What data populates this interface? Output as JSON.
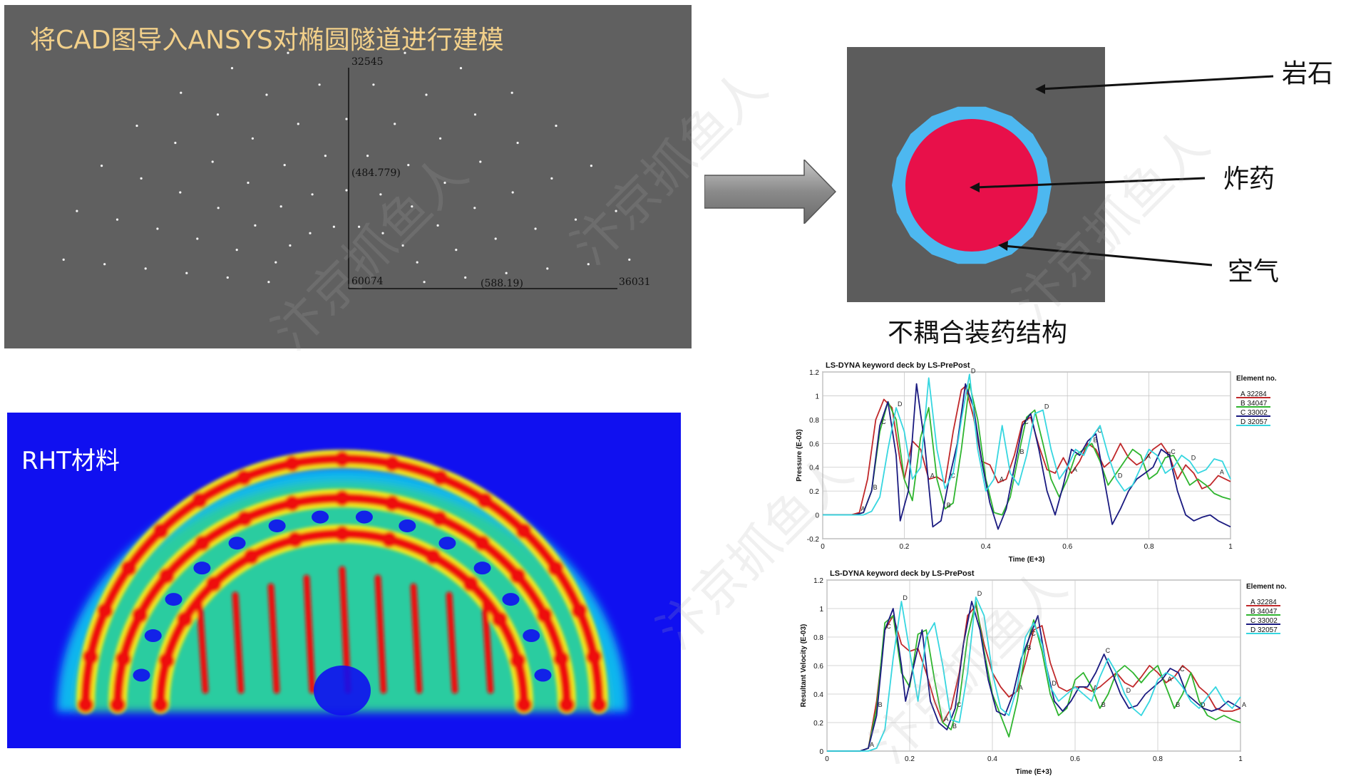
{
  "cad": {
    "title": "将CAD图导入ANSYS对椭圆隧道进行建模",
    "node_top": "32545",
    "node_origin": "60074",
    "node_right": "36031",
    "coord_vertical": "(484.779)",
    "coord_horizontal": "(588.19)"
  },
  "charge": {
    "label_rock": "岩石",
    "label_explosive": "炸药",
    "label_air": "空气",
    "caption": "不耦合装药结构",
    "colors": {
      "rock": "#5c5c5c",
      "air": "#4db8f0",
      "explosive": "#e8104a"
    }
  },
  "rht": {
    "label": "RHT材料"
  },
  "watermark": "汴京抓鱼人",
  "chart_data": [
    {
      "type": "line",
      "title": "LS-DYNA keyword deck by LS-PrePost",
      "xlabel": "Time (E+3)",
      "ylabel": "Pressure (E-03)",
      "xlim": [
        0,
        1
      ],
      "ylim": [
        -0.2,
        1.2
      ],
      "xticks": [
        0,
        0.2,
        0.4,
        0.6,
        0.8,
        1
      ],
      "yticks": [
        -0.2,
        0,
        0.2,
        0.4,
        0.6,
        0.8,
        1,
        1.2
      ],
      "legend_title": "Element no.",
      "legend_position": "right",
      "series": [
        {
          "name": "A 32284",
          "marker": "A",
          "color": "#c0282a",
          "x": [
            0,
            0.07,
            0.09,
            0.11,
            0.13,
            0.15,
            0.17,
            0.19,
            0.2,
            0.22,
            0.24,
            0.26,
            0.28,
            0.3,
            0.32,
            0.34,
            0.35,
            0.37,
            0.39,
            0.41,
            0.43,
            0.45,
            0.47,
            0.49,
            0.51,
            0.53,
            0.55,
            0.57,
            0.59,
            0.61,
            0.63,
            0.65,
            0.67,
            0.69,
            0.71,
            0.73,
            0.75,
            0.77,
            0.79,
            0.81,
            0.83,
            0.85,
            0.87,
            0.89,
            0.91,
            0.93,
            0.95,
            0.97,
            1
          ],
          "y": [
            0,
            0,
            0.02,
            0.3,
            0.8,
            0.97,
            0.9,
            0.45,
            0.3,
            0.62,
            0.55,
            0.3,
            0.32,
            0.27,
            0.7,
            1.05,
            1.08,
            0.82,
            0.45,
            0.42,
            0.27,
            0.3,
            0.5,
            0.78,
            0.82,
            0.58,
            0.38,
            0.35,
            0.48,
            0.35,
            0.45,
            0.6,
            0.55,
            0.4,
            0.46,
            0.6,
            0.48,
            0.42,
            0.46,
            0.55,
            0.6,
            0.5,
            0.3,
            0.42,
            0.35,
            0.22,
            0.25,
            0.33,
            0.28
          ]
        },
        {
          "name": "B 34047",
          "marker": "B",
          "color": "#2fb52f",
          "x": [
            0,
            0.08,
            0.1,
            0.12,
            0.14,
            0.16,
            0.18,
            0.2,
            0.22,
            0.24,
            0.26,
            0.28,
            0.3,
            0.32,
            0.34,
            0.36,
            0.38,
            0.4,
            0.42,
            0.44,
            0.46,
            0.48,
            0.5,
            0.52,
            0.54,
            0.56,
            0.58,
            0.6,
            0.62,
            0.64,
            0.66,
            0.68,
            0.7,
            0.72,
            0.74,
            0.76,
            0.78,
            0.8,
            0.82,
            0.84,
            0.86,
            0.88,
            0.9,
            0.92,
            0.94,
            0.96,
            0.98,
            1
          ],
          "y": [
            0,
            0,
            0.02,
            0.2,
            0.7,
            0.95,
            0.8,
            0.3,
            0.12,
            0.65,
            0.9,
            0.3,
            0.05,
            0.1,
            0.55,
            1.1,
            0.8,
            0.3,
            0.02,
            0.0,
            0.15,
            0.5,
            0.82,
            0.88,
            0.6,
            0.3,
            0.15,
            0.3,
            0.5,
            0.55,
            0.6,
            0.45,
            0.25,
            0.35,
            0.45,
            0.55,
            0.5,
            0.3,
            0.35,
            0.48,
            0.5,
            0.38,
            0.25,
            0.3,
            0.25,
            0.18,
            0.15,
            0.13
          ]
        },
        {
          "name": "C 33002",
          "marker": "C",
          "color": "#1a1a80",
          "x": [
            0,
            0.08,
            0.1,
            0.12,
            0.14,
            0.16,
            0.18,
            0.19,
            0.21,
            0.23,
            0.25,
            0.27,
            0.29,
            0.31,
            0.33,
            0.35,
            0.37,
            0.39,
            0.41,
            0.43,
            0.45,
            0.47,
            0.49,
            0.51,
            0.53,
            0.55,
            0.57,
            0.59,
            0.61,
            0.63,
            0.65,
            0.67,
            0.69,
            0.71,
            0.73,
            0.75,
            0.77,
            0.79,
            0.81,
            0.83,
            0.85,
            0.87,
            0.89,
            0.91,
            0.93,
            0.95,
            0.97,
            1
          ],
          "y": [
            0,
            0,
            0.02,
            0.2,
            0.75,
            0.95,
            0.5,
            -0.05,
            0.2,
            1.1,
            0.6,
            -0.1,
            -0.05,
            0.3,
            0.6,
            1.1,
            0.9,
            0.45,
            0.1,
            -0.12,
            0.05,
            0.4,
            0.75,
            0.85,
            0.55,
            0.2,
            0.0,
            0.25,
            0.55,
            0.5,
            0.62,
            0.68,
            0.3,
            -0.08,
            0.05,
            0.2,
            0.3,
            0.35,
            0.4,
            0.55,
            0.5,
            0.2,
            0.0,
            -0.05,
            -0.02,
            0.0,
            -0.05,
            -0.1
          ]
        },
        {
          "name": "D 32057",
          "marker": "D",
          "color": "#36d6e0",
          "x": [
            0,
            0.1,
            0.12,
            0.14,
            0.16,
            0.18,
            0.2,
            0.22,
            0.24,
            0.26,
            0.28,
            0.3,
            0.32,
            0.34,
            0.36,
            0.38,
            0.4,
            0.42,
            0.44,
            0.46,
            0.48,
            0.5,
            0.52,
            0.54,
            0.56,
            0.58,
            0.6,
            0.62,
            0.64,
            0.66,
            0.68,
            0.7,
            0.72,
            0.74,
            0.76,
            0.78,
            0.8,
            0.82,
            0.84,
            0.86,
            0.88,
            0.9,
            0.92,
            0.94,
            0.96,
            0.98,
            1
          ],
          "y": [
            0,
            0,
            0.03,
            0.15,
            0.55,
            0.9,
            0.7,
            0.3,
            0.4,
            1.15,
            0.55,
            0.22,
            0.35,
            0.8,
            1.18,
            0.55,
            0.2,
            0.3,
            0.75,
            0.35,
            0.25,
            0.5,
            0.85,
            0.88,
            0.55,
            0.3,
            0.4,
            0.55,
            0.5,
            0.65,
            0.75,
            0.5,
            0.3,
            0.2,
            0.25,
            0.4,
            0.55,
            0.5,
            0.35,
            0.4,
            0.5,
            0.45,
            0.35,
            0.38,
            0.47,
            0.45,
            0.3
          ]
        }
      ]
    },
    {
      "type": "line",
      "title": "LS-DYNA keyword deck by LS-PrePost",
      "xlabel": "Time (E+3)",
      "ylabel": "Resultant Velocity (E-03)",
      "xlim": [
        0,
        1
      ],
      "ylim": [
        0,
        1.2
      ],
      "xticks": [
        0,
        0.2,
        0.4,
        0.6,
        0.8,
        1
      ],
      "yticks": [
        0,
        0.2,
        0.4,
        0.6,
        0.8,
        1,
        1.2
      ],
      "legend_title": "Element no.",
      "legend_position": "right",
      "series": [
        {
          "name": "A 32284",
          "marker": "A",
          "color": "#c0282a",
          "x": [
            0,
            0.08,
            0.1,
            0.12,
            0.14,
            0.16,
            0.18,
            0.2,
            0.22,
            0.24,
            0.26,
            0.28,
            0.3,
            0.32,
            0.34,
            0.36,
            0.38,
            0.4,
            0.42,
            0.44,
            0.46,
            0.48,
            0.5,
            0.52,
            0.54,
            0.56,
            0.58,
            0.6,
            0.62,
            0.64,
            0.66,
            0.68,
            0.7,
            0.72,
            0.74,
            0.76,
            0.78,
            0.8,
            0.82,
            0.84,
            0.86,
            0.88,
            0.9,
            0.92,
            0.94,
            0.96,
            0.98,
            1
          ],
          "y": [
            0,
            0,
            0.02,
            0.35,
            0.85,
            0.95,
            0.75,
            0.7,
            0.72,
            0.55,
            0.35,
            0.2,
            0.3,
            0.55,
            0.95,
            1.02,
            0.75,
            0.55,
            0.45,
            0.38,
            0.42,
            0.62,
            0.85,
            0.88,
            0.62,
            0.45,
            0.42,
            0.45,
            0.45,
            0.42,
            0.45,
            0.5,
            0.55,
            0.48,
            0.45,
            0.52,
            0.6,
            0.55,
            0.48,
            0.52,
            0.6,
            0.55,
            0.45,
            0.4,
            0.3,
            0.28,
            0.28,
            0.3
          ]
        },
        {
          "name": "B 34047",
          "marker": "B",
          "color": "#2fb52f",
          "x": [
            0,
            0.08,
            0.1,
            0.12,
            0.14,
            0.16,
            0.18,
            0.2,
            0.22,
            0.24,
            0.26,
            0.28,
            0.3,
            0.32,
            0.34,
            0.36,
            0.38,
            0.4,
            0.42,
            0.44,
            0.46,
            0.48,
            0.5,
            0.52,
            0.54,
            0.56,
            0.58,
            0.6,
            0.62,
            0.64,
            0.66,
            0.68,
            0.7,
            0.72,
            0.74,
            0.76,
            0.78,
            0.8,
            0.82,
            0.84,
            0.86,
            0.88,
            0.9,
            0.92,
            0.94,
            0.96,
            0.98,
            1
          ],
          "y": [
            0,
            0,
            0.02,
            0.3,
            0.9,
            0.95,
            0.55,
            0.45,
            0.82,
            0.85,
            0.5,
            0.2,
            0.15,
            0.35,
            0.8,
            1.05,
            0.7,
            0.4,
            0.25,
            0.1,
            0.35,
            0.7,
            0.92,
            0.7,
            0.4,
            0.25,
            0.3,
            0.5,
            0.55,
            0.45,
            0.3,
            0.4,
            0.55,
            0.6,
            0.55,
            0.48,
            0.55,
            0.6,
            0.45,
            0.3,
            0.4,
            0.55,
            0.35,
            0.25,
            0.22,
            0.25,
            0.22,
            0.2
          ]
        },
        {
          "name": "C 33002",
          "marker": "C",
          "color": "#1a1a80",
          "x": [
            0,
            0.08,
            0.1,
            0.12,
            0.14,
            0.16,
            0.18,
            0.19,
            0.21,
            0.23,
            0.25,
            0.27,
            0.29,
            0.31,
            0.33,
            0.35,
            0.37,
            0.39,
            0.41,
            0.43,
            0.45,
            0.47,
            0.49,
            0.51,
            0.53,
            0.55,
            0.57,
            0.59,
            0.61,
            0.63,
            0.65,
            0.67,
            0.69,
            0.71,
            0.73,
            0.75,
            0.77,
            0.79,
            0.81,
            0.83,
            0.85,
            0.87,
            0.89,
            0.91,
            0.93,
            0.95,
            0.97,
            1
          ],
          "y": [
            0,
            0,
            0.02,
            0.25,
            0.85,
            1.0,
            0.6,
            0.35,
            0.6,
            0.85,
            0.35,
            0.2,
            0.15,
            0.3,
            0.75,
            1.05,
            0.85,
            0.5,
            0.28,
            0.25,
            0.4,
            0.65,
            0.8,
            0.95,
            0.6,
            0.35,
            0.28,
            0.35,
            0.45,
            0.45,
            0.55,
            0.68,
            0.55,
            0.4,
            0.3,
            0.32,
            0.4,
            0.45,
            0.5,
            0.58,
            0.55,
            0.4,
            0.35,
            0.3,
            0.28,
            0.3,
            0.35,
            0.3
          ]
        },
        {
          "name": "D 32057",
          "marker": "D",
          "color": "#36d6e0",
          "x": [
            0,
            0.1,
            0.12,
            0.14,
            0.16,
            0.18,
            0.2,
            0.22,
            0.24,
            0.26,
            0.28,
            0.3,
            0.32,
            0.34,
            0.36,
            0.38,
            0.4,
            0.42,
            0.44,
            0.46,
            0.48,
            0.5,
            0.52,
            0.54,
            0.56,
            0.58,
            0.6,
            0.62,
            0.64,
            0.66,
            0.68,
            0.7,
            0.72,
            0.74,
            0.76,
            0.78,
            0.8,
            0.82,
            0.84,
            0.86,
            0.88,
            0.9,
            0.92,
            0.94,
            0.96,
            0.98,
            1
          ],
          "y": [
            0,
            0,
            0.02,
            0.15,
            0.65,
            1.05,
            0.7,
            0.35,
            0.8,
            0.9,
            0.6,
            0.22,
            0.2,
            0.55,
            1.08,
            0.95,
            0.55,
            0.3,
            0.25,
            0.45,
            0.8,
            0.9,
            0.75,
            0.45,
            0.35,
            0.4,
            0.45,
            0.4,
            0.35,
            0.52,
            0.65,
            0.55,
            0.4,
            0.3,
            0.25,
            0.35,
            0.5,
            0.55,
            0.52,
            0.45,
            0.35,
            0.3,
            0.38,
            0.45,
            0.35,
            0.3,
            0.38
          ]
        }
      ]
    }
  ]
}
